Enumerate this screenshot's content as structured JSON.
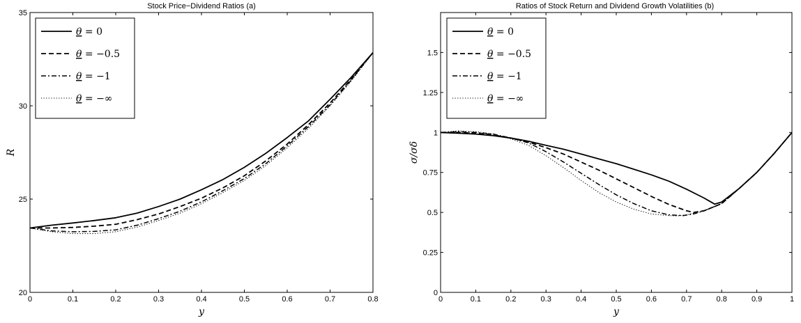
{
  "line_colors": {
    "all": "#000000"
  },
  "chart_data": [
    {
      "type": "line",
      "title": "Stock Price−Dividend Ratios (a)",
      "xlabel": "y",
      "ylabel": "R",
      "xlim": [
        0,
        0.8
      ],
      "ylim": [
        20,
        35
      ],
      "xticks": [
        0,
        0.1,
        0.2,
        0.3,
        0.4,
        0.5,
        0.6,
        0.7,
        0.8
      ],
      "xtick_labels": [
        "0",
        "0.1",
        "0.2",
        "0.3",
        "0.4",
        "0.5",
        "0.6",
        "0.7",
        "0.8"
      ],
      "yticks": [
        20,
        25,
        30,
        35
      ],
      "ytick_labels": [
        "20",
        "25",
        "30",
        "35"
      ],
      "legend_position": "top-left",
      "series": [
        {
          "name": "θ = 0",
          "style": "solid",
          "x": [
            0,
            0.05,
            0.1,
            0.15,
            0.2,
            0.25,
            0.3,
            0.35,
            0.4,
            0.45,
            0.5,
            0.55,
            0.6,
            0.65,
            0.7,
            0.75,
            0.8
          ],
          "y": [
            23.45,
            23.6,
            23.72,
            23.85,
            24.0,
            24.25,
            24.6,
            25.0,
            25.5,
            26.05,
            26.7,
            27.45,
            28.3,
            29.2,
            30.35,
            31.55,
            32.85
          ]
        },
        {
          "name": "θ = −0.5",
          "style": "dashed",
          "x": [
            0,
            0.05,
            0.1,
            0.15,
            0.2,
            0.25,
            0.3,
            0.35,
            0.4,
            0.45,
            0.5,
            0.55,
            0.6,
            0.65,
            0.7,
            0.75,
            0.8
          ],
          "y": [
            23.45,
            23.45,
            23.48,
            23.55,
            23.65,
            23.9,
            24.2,
            24.6,
            25.05,
            25.6,
            26.25,
            27.05,
            27.95,
            29.0,
            30.15,
            31.45,
            32.85
          ]
        },
        {
          "name": "θ = −1",
          "style": "dashdot",
          "x": [
            0,
            0.05,
            0.1,
            0.15,
            0.2,
            0.25,
            0.3,
            0.35,
            0.4,
            0.45,
            0.5,
            0.55,
            0.6,
            0.65,
            0.7,
            0.75,
            0.8
          ],
          "y": [
            23.45,
            23.3,
            23.25,
            23.27,
            23.35,
            23.6,
            23.95,
            24.35,
            24.85,
            25.45,
            26.1,
            26.9,
            27.85,
            28.9,
            30.05,
            31.4,
            32.85
          ]
        },
        {
          "name": "θ = −∞",
          "style": "dotted",
          "x": [
            0,
            0.05,
            0.1,
            0.15,
            0.2,
            0.25,
            0.3,
            0.35,
            0.4,
            0.45,
            0.5,
            0.55,
            0.6,
            0.65,
            0.7,
            0.75,
            0.8
          ],
          "y": [
            23.45,
            23.25,
            23.15,
            23.15,
            23.25,
            23.5,
            23.85,
            24.25,
            24.75,
            25.35,
            26.0,
            26.8,
            27.75,
            28.8,
            30.0,
            31.35,
            32.85
          ]
        }
      ]
    },
    {
      "type": "line",
      "title": "Ratios of Stock Return and Dividend Growth Volatilities (b)",
      "xlabel": "y",
      "ylabel": "σ/σδ",
      "xlim": [
        0,
        1
      ],
      "ylim": [
        0,
        1.75
      ],
      "xticks": [
        0,
        0.1,
        0.2,
        0.3,
        0.4,
        0.5,
        0.6,
        0.7,
        0.8,
        0.9,
        1
      ],
      "xtick_labels": [
        "0",
        "0.1",
        "0.2",
        "0.3",
        "0.4",
        "0.5",
        "0.6",
        "0.7",
        "0.8",
        "0.9",
        "1"
      ],
      "yticks": [
        0,
        0.25,
        0.5,
        0.75,
        1,
        1.25,
        1.5
      ],
      "ytick_labels": [
        "0",
        "0.25",
        "0.5",
        "0.75",
        "1",
        "1.25",
        "1.5"
      ],
      "legend_position": "top-left",
      "series": [
        {
          "name": "θ = 0",
          "style": "solid",
          "x": [
            0,
            0.05,
            0.1,
            0.15,
            0.2,
            0.25,
            0.3,
            0.35,
            0.4,
            0.45,
            0.5,
            0.55,
            0.6,
            0.65,
            0.7,
            0.75,
            0.78,
            0.8,
            0.85,
            0.9,
            0.95,
            1.0
          ],
          "y": [
            1.0,
            0.995,
            0.99,
            0.98,
            0.965,
            0.945,
            0.92,
            0.895,
            0.865,
            0.835,
            0.805,
            0.77,
            0.735,
            0.695,
            0.645,
            0.59,
            0.552,
            0.565,
            0.65,
            0.75,
            0.87,
            1.0
          ]
        },
        {
          "name": "θ = −0.5",
          "style": "dashed",
          "x": [
            0,
            0.05,
            0.1,
            0.15,
            0.2,
            0.25,
            0.3,
            0.35,
            0.4,
            0.45,
            0.5,
            0.55,
            0.6,
            0.65,
            0.7,
            0.72,
            0.75,
            0.8,
            0.85,
            0.9,
            0.95,
            1.0
          ],
          "y": [
            1.0,
            1.0,
            0.995,
            0.985,
            0.965,
            0.94,
            0.905,
            0.865,
            0.815,
            0.765,
            0.71,
            0.655,
            0.6,
            0.55,
            0.51,
            0.5,
            0.51,
            0.555,
            0.65,
            0.75,
            0.87,
            1.0
          ]
        },
        {
          "name": "θ = −1",
          "style": "dashdot",
          "x": [
            0,
            0.05,
            0.1,
            0.15,
            0.2,
            0.25,
            0.3,
            0.35,
            0.4,
            0.45,
            0.5,
            0.55,
            0.6,
            0.65,
            0.69,
            0.72,
            0.75,
            0.8,
            0.85,
            0.9,
            0.95,
            1.0
          ],
          "y": [
            1.0,
            1.005,
            1.0,
            0.99,
            0.965,
            0.935,
            0.88,
            0.815,
            0.745,
            0.675,
            0.61,
            0.555,
            0.51,
            0.485,
            0.48,
            0.49,
            0.51,
            0.555,
            0.65,
            0.75,
            0.87,
            1.0
          ]
        },
        {
          "name": "θ = −∞",
          "style": "dotted",
          "x": [
            0,
            0.05,
            0.1,
            0.15,
            0.2,
            0.25,
            0.3,
            0.35,
            0.4,
            0.45,
            0.5,
            0.55,
            0.6,
            0.65,
            0.67,
            0.7,
            0.75,
            0.8,
            0.85,
            0.9,
            0.95,
            1.0
          ],
          "y": [
            1.0,
            1.01,
            1.005,
            0.99,
            0.96,
            0.92,
            0.855,
            0.78,
            0.7,
            0.625,
            0.565,
            0.52,
            0.49,
            0.48,
            0.478,
            0.485,
            0.51,
            0.555,
            0.65,
            0.75,
            0.87,
            1.0
          ]
        }
      ]
    }
  ]
}
